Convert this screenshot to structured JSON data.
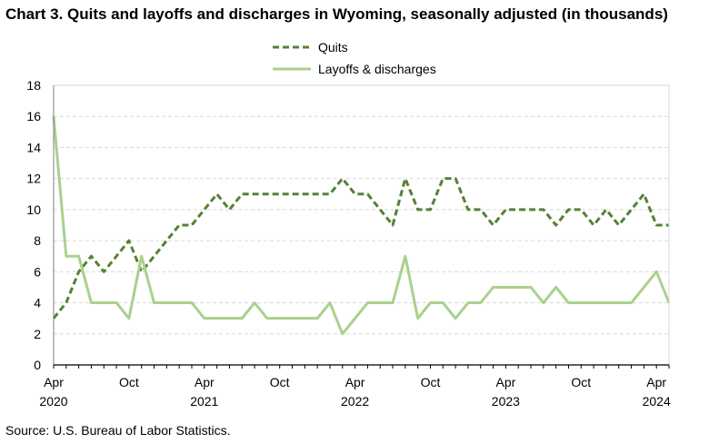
{
  "title": "Chart 3. Quits and layoffs and discharges in Wyoming, seasonally adjusted (in thousands)",
  "source": "Source: U.S. Bureau of Labor Statistics.",
  "colors": {
    "quits": "#548235",
    "layoffs": "#a9d18e",
    "grid": "#d9d9d9",
    "axis": "#000000"
  },
  "chart_data": {
    "type": "line",
    "x_start": "2020-04",
    "ylim": [
      0,
      18
    ],
    "yticks": [
      0,
      2,
      4,
      6,
      8,
      10,
      12,
      14,
      16,
      18
    ],
    "x_tick_labels": [
      {
        "month": "Apr",
        "year": "2020"
      },
      {
        "month": "Oct",
        "year": ""
      },
      {
        "month": "Apr",
        "year": "2021"
      },
      {
        "month": "Oct",
        "year": ""
      },
      {
        "month": "Apr",
        "year": "2022"
      },
      {
        "month": "Oct",
        "year": ""
      },
      {
        "month": "Apr",
        "year": "2023"
      },
      {
        "month": "Oct",
        "year": ""
      },
      {
        "month": "Apr",
        "year": "2024"
      }
    ],
    "grid": "horizontal",
    "legend_position": "top-center",
    "series": [
      {
        "name": "Quits",
        "style": "dashed",
        "values": [
          3,
          4,
          6,
          7,
          6,
          7,
          8,
          6,
          7,
          8,
          9,
          9,
          10,
          11,
          10,
          11,
          11,
          11,
          11,
          11,
          11,
          11,
          11,
          12,
          11,
          11,
          10,
          9,
          12,
          10,
          10,
          12,
          12,
          10,
          10,
          9,
          10,
          10,
          10,
          10,
          9,
          10,
          10,
          9,
          10,
          9,
          10,
          11,
          9,
          9
        ]
      },
      {
        "name": "Layoffs & discharges",
        "style": "solid",
        "values": [
          16,
          7,
          7,
          4,
          4,
          4,
          3,
          7,
          4,
          4,
          4,
          4,
          3,
          3,
          3,
          3,
          4,
          3,
          3,
          3,
          3,
          3,
          4,
          2,
          3,
          4,
          4,
          4,
          7,
          3,
          4,
          4,
          3,
          4,
          4,
          5,
          5,
          5,
          5,
          4,
          5,
          4,
          4,
          4,
          4,
          4,
          4,
          5,
          6,
          4
        ]
      }
    ]
  }
}
